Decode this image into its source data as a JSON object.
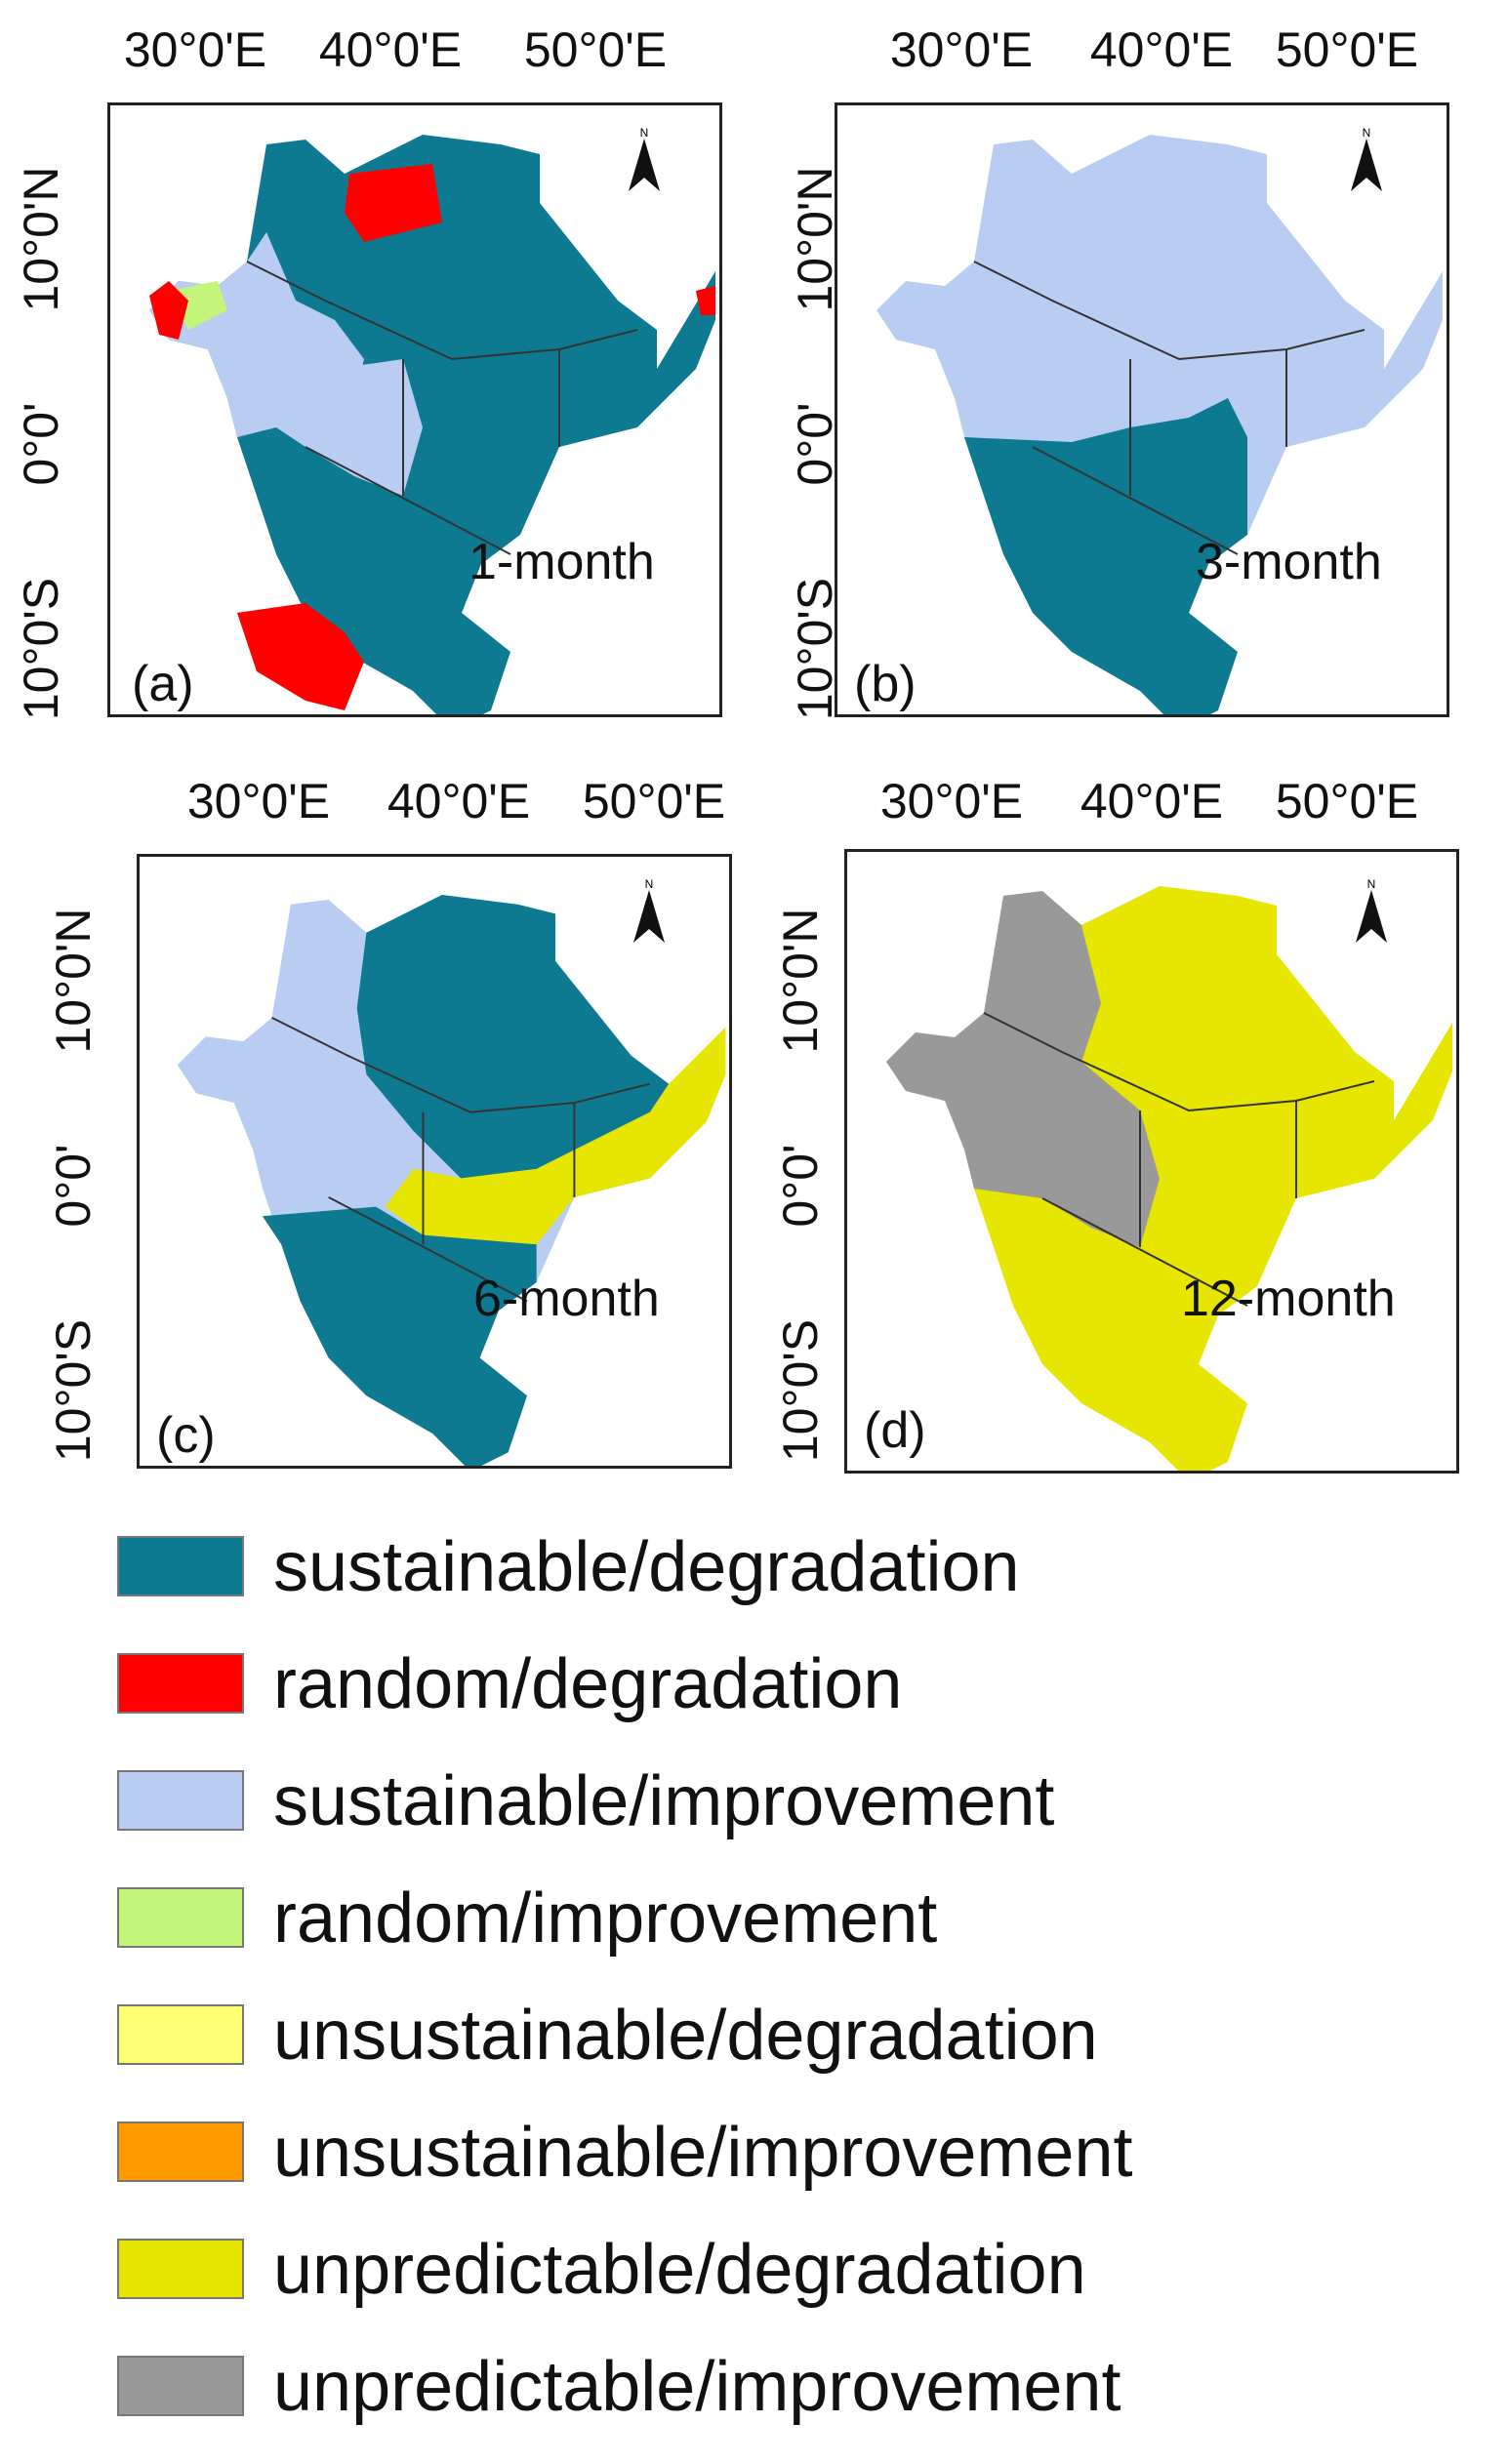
{
  "legend": [
    {
      "label": "sustainable/degradation",
      "color": "#0d7a92"
    },
    {
      "label": "random/degradation",
      "color": "#ff0000"
    },
    {
      "label": "sustainable/improvement",
      "color": "#b9cdf3"
    },
    {
      "label": "random/improvement",
      "color": "#c2f57a"
    },
    {
      "label": "unsustainable/degradation",
      "color": "#ffff73"
    },
    {
      "label": "unsustainable/improvement",
      "color": "#ff9a00"
    },
    {
      "label": "unpredictable/degradation",
      "color": "#e6e600"
    },
    {
      "label": "unpredictable/improvement",
      "color": "#999999"
    }
  ],
  "axes": {
    "lon_ticks": [
      "30°0'E",
      "40°0'E",
      "50°0'E"
    ],
    "lat_ticks": [
      "10°0'N",
      "0°0'",
      "10°0'S"
    ]
  },
  "north_label": "N",
  "panels": [
    {
      "letter": "(a)",
      "timescale": "1-month"
    },
    {
      "letter": "(b)",
      "timescale": "3-month"
    },
    {
      "letter": "(c)",
      "timescale": "6-month"
    },
    {
      "letter": "(d)",
      "timescale": "12-month"
    }
  ]
}
